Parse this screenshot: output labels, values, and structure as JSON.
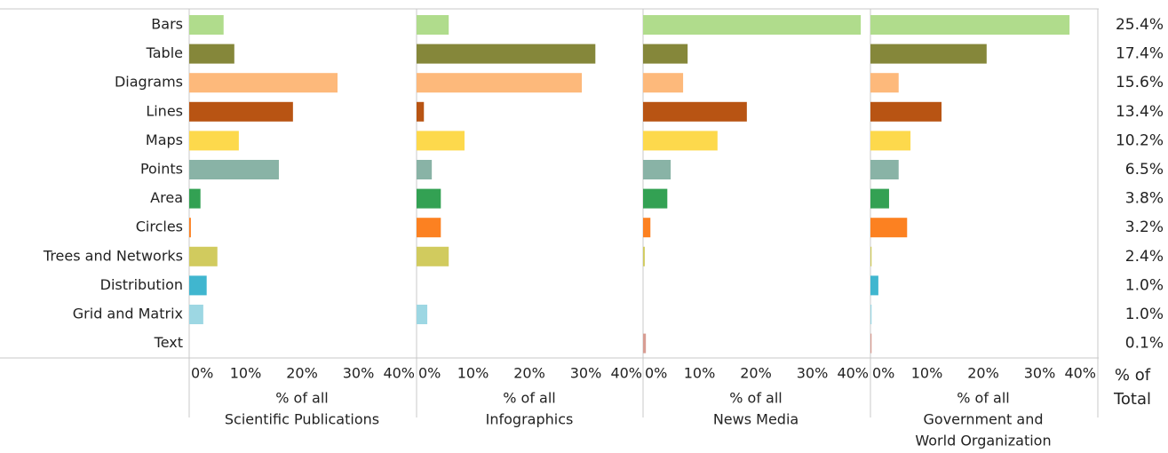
{
  "chart_data": {
    "type": "bar",
    "orientation": "horizontal",
    "categories": [
      "Bars",
      "Table",
      "Diagrams",
      "Lines",
      "Maps",
      "Points",
      "Area",
      "Circles",
      "Trees and Networks",
      "Distribution",
      "Grid and Matrix",
      "Text"
    ],
    "colors": [
      "#b0dc8c",
      "#85873a",
      "#fdb97b",
      "#b85413",
      "#fdd94c",
      "#89b3a6",
      "#33a153",
      "#fc8121",
      "#d1cb5e",
      "#40b6cf",
      "#9dd7e3",
      "#d89d93"
    ],
    "xlim": [
      0,
      40
    ],
    "xticks": [
      {
        "value": 0,
        "label": "0%"
      },
      {
        "value": 10,
        "label": "10%"
      },
      {
        "value": 20,
        "label": "20%"
      },
      {
        "value": 30,
        "label": "30%"
      },
      {
        "value": 40,
        "label": "40%"
      }
    ],
    "panels": [
      {
        "label": [
          "% of all",
          "Scientific Publications"
        ],
        "values": [
          6.1,
          8.0,
          26.3,
          18.4,
          8.8,
          15.9,
          2.0,
          0.3,
          5.0,
          3.1,
          2.5,
          0
        ]
      },
      {
        "label": [
          "% of all",
          "Infographics"
        ],
        "values": [
          5.7,
          31.7,
          29.3,
          1.3,
          8.5,
          2.7,
          4.3,
          4.3,
          5.7,
          0,
          1.9,
          0
        ]
      },
      {
        "label": [
          "% of all",
          "News Media"
        ],
        "values": [
          38.6,
          7.9,
          7.1,
          18.4,
          13.2,
          4.9,
          4.3,
          1.3,
          0.3,
          0,
          0,
          0.5
        ]
      },
      {
        "label": [
          "% of all",
          "Government and",
          "World Organization"
        ],
        "values": [
          35.3,
          20.6,
          5.0,
          12.6,
          7.1,
          5.0,
          3.3,
          6.5,
          0.2,
          1.4,
          0.2,
          0.2
        ]
      }
    ],
    "totals": {
      "header": [
        "% of",
        "Total"
      ],
      "values": [
        25.4,
        17.4,
        15.6,
        13.4,
        10.2,
        6.5,
        3.8,
        3.2,
        2.4,
        1.0,
        1.0,
        0.1
      ],
      "value_labels": [
        "25.4%",
        "17.4%",
        "15.6%",
        "13.4%",
        "10.2%",
        "6.5%",
        "3.8%",
        "3.2%",
        "2.4%",
        "1.0%",
        "1.0%",
        "0.1%"
      ]
    }
  }
}
